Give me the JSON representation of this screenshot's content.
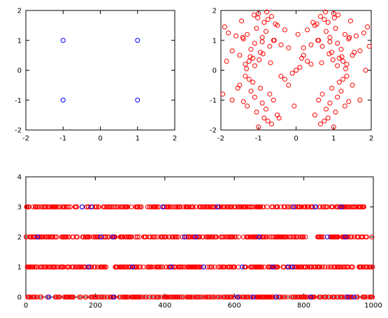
{
  "chart_data": [
    {
      "type": "scatter",
      "xlim": [
        -2,
        2
      ],
      "ylim": [
        -2,
        2
      ],
      "xticks": [
        -2,
        -1,
        0,
        1,
        2
      ],
      "yticks": [
        -2,
        -1,
        0,
        1,
        2
      ],
      "grid": false,
      "legend": "none",
      "marker": "open-circle",
      "series": [
        {
          "color": "#0000ff",
          "x": [
            -1,
            1,
            -1,
            1
          ],
          "y": [
            1,
            1,
            -1,
            -1
          ]
        }
      ]
    },
    {
      "type": "scatter",
      "xlim": [
        -2,
        2
      ],
      "ylim": [
        -2,
        2
      ],
      "xticks": [
        -2,
        -1,
        0,
        1,
        2
      ],
      "yticks": [
        -2,
        -1,
        0,
        1,
        2
      ],
      "grid": false,
      "legend": "none",
      "marker": "open-circle",
      "series": [
        {
          "color": "#ff0000",
          "x": [
            0.9,
            1.1,
            0.8,
            1.2,
            0.6,
            1.3,
            0.95,
            1.05,
            0.7,
            1.4,
            0.5,
            1.5,
            0.85,
            1.15,
            0.75,
            1.25,
            0.65,
            1.35,
            1.0,
            0.9,
            1.6,
            0.4,
            1.7,
            0.3,
            1.8,
            1.1,
            0.2,
            1.9,
            0.55,
            1.45,
            0.98,
            1.02,
            0.88,
            1.12,
            1.22,
            0.78,
            0.68,
            1.32,
            0.58,
            1.42,
            -0.9,
            -1.1,
            -0.8,
            -1.2,
            -0.6,
            -1.3,
            -0.95,
            -1.05,
            -0.7,
            -1.4,
            -0.5,
            -1.5,
            -0.85,
            -1.15,
            -0.75,
            -1.25,
            -0.65,
            -1.35,
            -1.0,
            -0.9,
            -1.6,
            -0.4,
            -1.7,
            -0.3,
            -1.8,
            -1.1,
            -0.2,
            -1.9,
            -0.55,
            -1.45,
            -0.98,
            -1.02,
            -0.88,
            -1.12,
            -1.22,
            -0.78,
            -0.68,
            -1.32,
            -0.58,
            -1.42,
            -0.9,
            -1.1,
            -0.8,
            -1.2,
            -0.6,
            -1.3,
            -0.95,
            -1.05,
            -0.7,
            -1.4,
            -0.5,
            -1.5,
            -0.85,
            -1.15,
            -0.75,
            -1.25,
            -0.65,
            -1.35,
            -1.0,
            -1.7,
            0.9,
            1.1,
            0.8,
            1.2,
            0.6,
            1.3,
            0.95,
            1.05,
            0.7,
            1.4,
            0.5,
            1.5,
            0.85,
            1.15,
            0.75,
            1.25,
            0.65,
            1.35,
            1.0,
            1.7,
            0.1,
            -0.1,
            0.3,
            -0.3,
            0.2,
            -0.2,
            0.0,
            0.4,
            -0.4,
            0.15,
            1.95,
            -1.95,
            0.05,
            -0.05,
            1.55,
            -1.55,
            0.45,
            -0.45,
            1.85,
            -1.85
          ],
          "y": [
            1.1,
            0.9,
            1.3,
            0.7,
            1.0,
            1.2,
            0.6,
            1.4,
            0.8,
            1.05,
            1.5,
            0.5,
            1.6,
            0.4,
            1.7,
            0.3,
            1.8,
            0.2,
            1.9,
            0.95,
            1.15,
            0.85,
            0.65,
            1.35,
            1.25,
            0.15,
            0.75,
            1.45,
            1.55,
            1.65,
            0.35,
            1.75,
            0.55,
            1.85,
            0.45,
            1.95,
            0.25,
            0.05,
            1.0,
            1.1,
            1.1,
            0.9,
            1.3,
            0.7,
            1.0,
            1.2,
            0.6,
            1.4,
            0.8,
            1.05,
            1.5,
            0.5,
            1.6,
            0.4,
            1.7,
            0.3,
            1.8,
            0.2,
            1.9,
            0.95,
            1.15,
            0.85,
            0.65,
            1.35,
            1.25,
            0.15,
            0.75,
            1.45,
            1.55,
            1.65,
            0.35,
            1.75,
            0.55,
            1.85,
            0.45,
            1.95,
            0.25,
            0.05,
            1.0,
            1.1,
            -1.1,
            -0.9,
            -1.3,
            -0.7,
            -1.0,
            -1.2,
            -0.6,
            -1.4,
            -0.8,
            -1.05,
            -1.5,
            -0.5,
            -1.6,
            -0.4,
            -1.7,
            -0.3,
            -1.8,
            -0.2,
            -1.9,
            -1.0,
            -1.1,
            -0.9,
            -1.3,
            -0.7,
            -1.0,
            -1.2,
            -0.6,
            -1.4,
            -0.8,
            -1.05,
            -1.5,
            -0.5,
            -1.6,
            -0.4,
            -1.7,
            -0.3,
            -1.8,
            -0.2,
            -1.9,
            -1.0,
            0.1,
            -0.1,
            0.3,
            -0.3,
            0.5,
            -0.5,
            0.0,
            0.2,
            -0.2,
            0.4,
            0.8,
            -0.8,
            1.2,
            -1.2,
            0.6,
            -0.6,
            1.6,
            -1.6,
            0.0,
            0.3
          ]
        }
      ]
    },
    {
      "type": "scatter",
      "xlim": [
        0,
        1000
      ],
      "ylim": [
        0,
        4
      ],
      "xticks": [
        0,
        200,
        400,
        600,
        800,
        1000
      ],
      "yticks": [
        0,
        1,
        2,
        3,
        4
      ],
      "grid": false,
      "legend": "none",
      "marker": "open-circle",
      "series": [
        {
          "color": "#ff0000",
          "levels": [
            0,
            1,
            2,
            3
          ],
          "x_range": [
            0,
            1000
          ],
          "points_per_level": 300
        },
        {
          "color": "#0000ff",
          "levels": [
            0,
            1,
            2,
            3
          ],
          "x_range": [
            0,
            1000
          ],
          "points_per_level": 8
        }
      ]
    }
  ]
}
